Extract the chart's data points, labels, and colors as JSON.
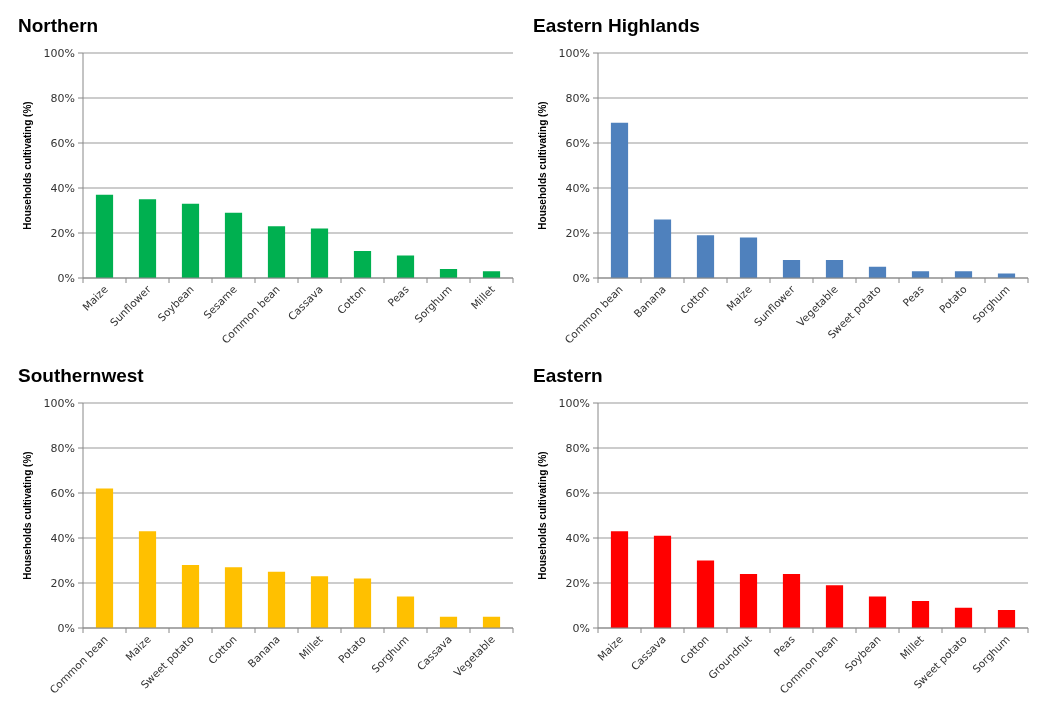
{
  "chart_data": [
    {
      "type": "bar",
      "title": "Northern",
      "ylabel": "Households cultivating (%)",
      "categories": [
        "Maize",
        "Sunflower",
        "Soybean",
        "Sesame",
        "Common bean",
        "Cassava",
        "Cotton",
        "Peas",
        "Sorghum",
        "Millet"
      ],
      "values": [
        37,
        35,
        33,
        29,
        23,
        22,
        12,
        10,
        4,
        3
      ],
      "color": "#00b050",
      "ylim": [
        0,
        100
      ],
      "yticks": [
        {
          "value": 0,
          "label": "0%"
        },
        {
          "value": 20,
          "label": "20%"
        },
        {
          "value": 40,
          "label": "40%"
        },
        {
          "value": 60,
          "label": "60%"
        },
        {
          "value": 80,
          "label": "80%"
        },
        {
          "value": 100,
          "label": "100%"
        }
      ],
      "grid": "y"
    },
    {
      "type": "bar",
      "title": "Eastern Highlands",
      "ylabel": "Households cultivating (%)",
      "categories": [
        "Common bean",
        "Banana",
        "Cotton",
        "Maize",
        "Sunflower",
        "Vegetable",
        "Sweet potato",
        "Peas",
        "Potato",
        "Sorghum"
      ],
      "values": [
        69,
        26,
        19,
        18,
        8,
        8,
        5,
        3,
        3,
        2
      ],
      "color": "#4f81bd",
      "ylim": [
        0,
        100
      ],
      "yticks": [
        {
          "value": 0,
          "label": "0%"
        },
        {
          "value": 20,
          "label": "20%"
        },
        {
          "value": 40,
          "label": "40%"
        },
        {
          "value": 60,
          "label": "60%"
        },
        {
          "value": 80,
          "label": "80%"
        },
        {
          "value": 100,
          "label": "100%"
        }
      ],
      "grid": "y"
    },
    {
      "type": "bar",
      "title": "Southernwest",
      "ylabel": "Households cultivating (%)",
      "categories": [
        "Common bean",
        "Maize",
        "Sweet potato",
        "Cotton",
        "Banana",
        "Millet",
        "Potato",
        "Sorghum",
        "Cassava",
        "Vegetable"
      ],
      "values": [
        62,
        43,
        28,
        27,
        25,
        23,
        22,
        14,
        5,
        5
      ],
      "color": "#ffc000",
      "ylim": [
        0,
        100
      ],
      "yticks": [
        {
          "value": 0,
          "label": "0%"
        },
        {
          "value": 20,
          "label": "20%"
        },
        {
          "value": 40,
          "label": "40%"
        },
        {
          "value": 60,
          "label": "60%"
        },
        {
          "value": 80,
          "label": "80%"
        },
        {
          "value": 100,
          "label": "100%"
        }
      ],
      "grid": "y"
    },
    {
      "type": "bar",
      "title": "Eastern",
      "ylabel": "Households cultivating (%)",
      "categories": [
        "Maize",
        "Cassava",
        "Cotton",
        "Groundnut",
        "Peas",
        "Common bean",
        "Soybean",
        "Millet",
        "Sweet potato",
        "Sorghum"
      ],
      "values": [
        43,
        41,
        30,
        24,
        24,
        19,
        14,
        12,
        9,
        8
      ],
      "color": "#ff0000",
      "ylim": [
        0,
        100
      ],
      "yticks": [
        {
          "value": 0,
          "label": "0%"
        },
        {
          "value": 20,
          "label": "20%"
        },
        {
          "value": 40,
          "label": "40%"
        },
        {
          "value": 60,
          "label": "60%"
        },
        {
          "value": 80,
          "label": "80%"
        },
        {
          "value": 100,
          "label": "100%"
        }
      ],
      "grid": "y"
    }
  ]
}
